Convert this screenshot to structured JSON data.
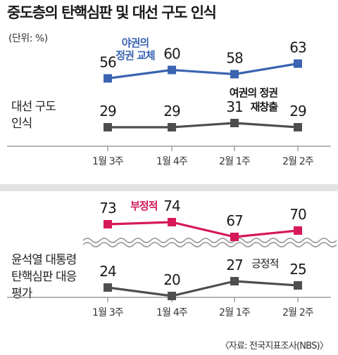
{
  "title": "중도층의 탄핵심판 및 대선 구도 인식",
  "unit": "(단위: %)",
  "source": "〈자료: 전국지표조사(NBS)〉",
  "colors": {
    "blue": "#3a63b0",
    "gray": "#4e4e4e",
    "red": "#d6185a",
    "axis": "#8a8a8a",
    "separator": "#e3e3e3"
  },
  "panels": [
    {
      "row_label": "대선 구도\n인식",
      "categories": [
        "1월 3주",
        "1월 4주",
        "2월 1주",
        "2월 2주"
      ],
      "series": [
        {
          "name": "야권의\n정권 교체",
          "color": "#3a63b0",
          "values": [
            56,
            60,
            58,
            63
          ]
        },
        {
          "name": "여권의 정권\n재창출",
          "color": "#4e4e4e",
          "values": [
            29,
            29,
            31,
            29
          ]
        }
      ]
    },
    {
      "row_label": "윤석열 대통령\n탄핵심판 대응\n평가",
      "categories": [
        "1월 3주",
        "1월 4주",
        "2월 1주",
        "2월 2주"
      ],
      "series": [
        {
          "name": "부정적",
          "color": "#d6185a",
          "values": [
            73,
            74,
            67,
            70
          ]
        },
        {
          "name": "긍정적",
          "color": "#4e4e4e",
          "values": [
            24,
            20,
            27,
            25
          ]
        }
      ]
    }
  ],
  "chart_data": [
    {
      "type": "line",
      "title": "중도층의 탄핵심판 및 대선 구도 인식",
      "xlabel": "",
      "ylabel": "대선 구도 인식",
      "categories": [
        "1월 3주",
        "1월 4주",
        "2월 1주",
        "2월 2주"
      ],
      "series": [
        {
          "name": "야권의 정권 교체",
          "values": [
            56,
            60,
            58,
            63
          ]
        },
        {
          "name": "여권의 정권 재창출",
          "values": [
            29,
            29,
            31,
            29
          ]
        }
      ],
      "grid": false
    },
    {
      "type": "line",
      "xlabel": "",
      "ylabel": "윤석열 대통령 탄핵심판 대응 평가",
      "categories": [
        "1월 3주",
        "1월 4주",
        "2월 1주",
        "2월 2주"
      ],
      "series": [
        {
          "name": "부정적",
          "values": [
            73,
            74,
            67,
            70
          ]
        },
        {
          "name": "긍정적",
          "values": [
            24,
            20,
            27,
            25
          ]
        }
      ],
      "grid": false
    }
  ]
}
